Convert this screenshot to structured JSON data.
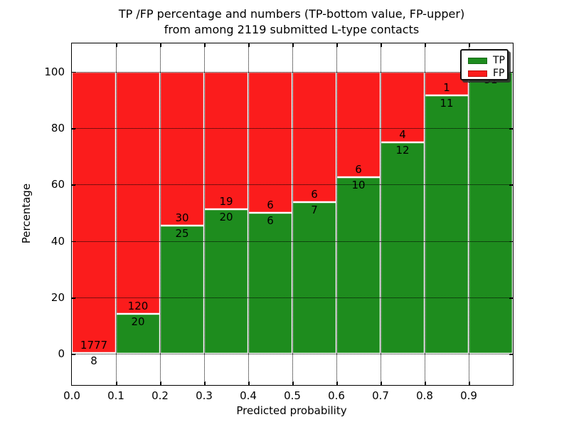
{
  "figure": {
    "title_line1": "TP /FP percentage and numbers (TP-bottom value, FP-upper)",
    "title_line2": "from among 2119 submitted L-type contacts"
  },
  "chart_data": {
    "type": "bar",
    "stacked": true,
    "normalized_to_percent": true,
    "title": "TP /FP percentage and numbers (TP-bottom value, FP-upper)\nfrom among 2119 submitted L-type contacts",
    "xlabel": "Predicted probability",
    "ylabel": "Percentage",
    "total_submitted_contacts": 2119,
    "bin_width": 0.1,
    "x_tick_labels": [
      "0.0",
      "0.1",
      "0.2",
      "0.3",
      "0.4",
      "0.5",
      "0.6",
      "0.7",
      "0.8",
      "0.9"
    ],
    "y_ticks": [
      0,
      20,
      40,
      60,
      80,
      100
    ],
    "xlim": [
      0.0,
      1.0
    ],
    "ylim": [
      -11,
      110
    ],
    "grid": "dotted-black-on",
    "series": [
      {
        "name": "TP",
        "position": "bottom",
        "color": "#1e8c1e",
        "counts": [
          8,
          20,
          25,
          20,
          6,
          7,
          10,
          12,
          11,
          31
        ]
      },
      {
        "name": "FP",
        "position": "top",
        "color": "#fb1c1c",
        "counts": [
          1777,
          120,
          30,
          19,
          6,
          6,
          6,
          4,
          1,
          0
        ]
      }
    ],
    "tp_percent_per_bin": [
      0.45,
      14.29,
      45.45,
      51.28,
      50.0,
      53.85,
      62.5,
      75.0,
      91.67,
      100.0
    ],
    "legend": {
      "position": "upper right",
      "entries": [
        {
          "label": "TP",
          "color": "#1e8c1e"
        },
        {
          "label": "FP",
          "color": "#fb1c1c"
        }
      ]
    }
  }
}
